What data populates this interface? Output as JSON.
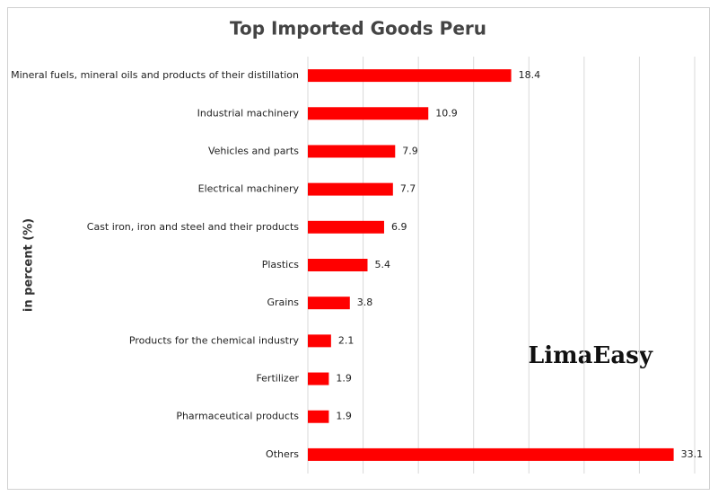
{
  "chart_data": {
    "type": "bar",
    "orientation": "horizontal",
    "title": "Top Imported Goods Peru",
    "y_label": "in percent (%)",
    "categories": [
      "Mineral fuels, mineral oils and products of their distillation",
      "Industrial machinery",
      "Vehicles and parts",
      "Electrical machinery",
      "Cast iron, iron and steel and their products",
      "Plastics",
      "Grains",
      "Products for the chemical industry",
      "Fertilizer",
      "Pharmaceutical products",
      "Others"
    ],
    "values": [
      18.4,
      10.9,
      7.9,
      7.7,
      6.9,
      5.4,
      3.8,
      2.1,
      1.9,
      1.9,
      33.1
    ],
    "color": "#ff0000",
    "xlim": [
      0,
      35
    ],
    "xticks": [
      0,
      5,
      10,
      15,
      20,
      25,
      30,
      35
    ],
    "grid": true,
    "watermark": "LimaEasy"
  }
}
